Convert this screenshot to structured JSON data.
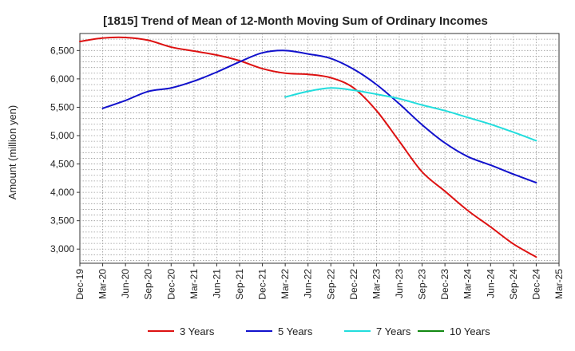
{
  "chart_data": {
    "type": "line",
    "title": "[1815]  Trend of Mean of 12-Month Moving Sum of Ordinary Incomes",
    "xlabel": "",
    "ylabel": "Amount (million yen)",
    "ylim": [
      2750,
      6800
    ],
    "yticks": [
      3000,
      3500,
      4000,
      4500,
      5000,
      5500,
      6000,
      6500
    ],
    "ytick_labels": [
      "3,000",
      "3,500",
      "4,000",
      "4,500",
      "5,000",
      "5,500",
      "6,000",
      "6,500"
    ],
    "categories": [
      "Dec-19",
      "Mar-20",
      "Jun-20",
      "Sep-20",
      "Dec-20",
      "Mar-21",
      "Jun-21",
      "Sep-21",
      "Dec-21",
      "Mar-22",
      "Jun-22",
      "Sep-22",
      "Dec-22",
      "Mar-23",
      "Jun-23",
      "Sep-23",
      "Dec-23",
      "Mar-24",
      "Jun-24",
      "Sep-24",
      "Dec-24",
      "Mar-25"
    ],
    "grid": true,
    "legend_position": "bottom",
    "series": [
      {
        "name": "3 Years",
        "color": "#dd1111",
        "values": [
          6660,
          6720,
          6730,
          6680,
          6560,
          6490,
          6420,
          6320,
          6180,
          6100,
          6080,
          6020,
          5840,
          5440,
          4900,
          4360,
          4020,
          3680,
          3390,
          3090,
          2860,
          null
        ]
      },
      {
        "name": "5 Years",
        "color": "#1111cc",
        "values": [
          null,
          5480,
          5620,
          5780,
          5840,
          5960,
          6120,
          6300,
          6460,
          6500,
          6440,
          6360,
          6170,
          5900,
          5560,
          5190,
          4870,
          4630,
          4480,
          4320,
          4170,
          null
        ]
      },
      {
        "name": "7 Years",
        "color": "#22dddd",
        "values": [
          null,
          null,
          null,
          null,
          null,
          null,
          null,
          null,
          null,
          5680,
          5780,
          5840,
          5800,
          5730,
          5650,
          5540,
          5440,
          5320,
          5200,
          5060,
          4910,
          null
        ]
      },
      {
        "name": "10 Years",
        "color": "#118811",
        "values": [
          null,
          null,
          null,
          null,
          null,
          null,
          null,
          null,
          null,
          null,
          null,
          null,
          null,
          null,
          null,
          null,
          null,
          null,
          null,
          null,
          null,
          null
        ]
      }
    ]
  }
}
